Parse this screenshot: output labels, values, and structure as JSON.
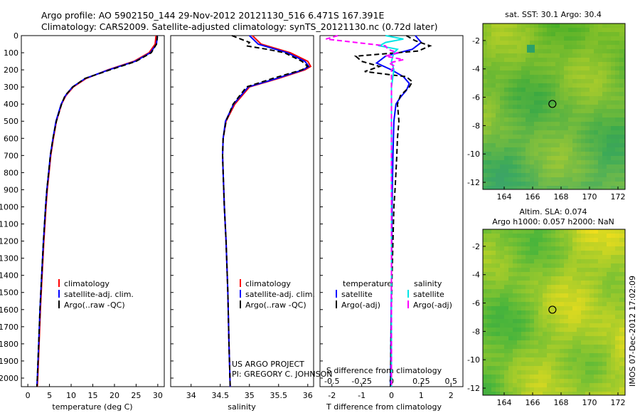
{
  "header": {
    "line1": "Argo profile: AO 5902150_144 29-Nov-2012 20121130_516 6.471S 167.391E",
    "line2": "Climatology: CARS2009. Satellite-adjusted climatology: synTS_20121130.nc (0.72d later)"
  },
  "credit": {
    "line1": "US ARGO PROJECT",
    "line2": "PI: GREGORY C. JOHNSON"
  },
  "stamp": "IMOS 07-Dec-2012 17:02:09",
  "colors": {
    "clim": "#ff0000",
    "sat": "#0000ff",
    "argo": "#000000",
    "cyan": "#00e5e5",
    "magenta": "#ff00ff"
  },
  "chart_data": [
    {
      "type": "line",
      "id": "temperature",
      "xlabel": "temperature (deg C)",
      "ylabel": "",
      "xlim": [
        -1.5,
        31.5
      ],
      "ylim": [
        2050,
        0
      ],
      "xticks": [
        0,
        5,
        10,
        15,
        20,
        25,
        30
      ],
      "xtick_labels": [
        "0",
        "5",
        "10",
        "15",
        "20",
        "25",
        "30"
      ],
      "yticks": [
        0,
        100,
        200,
        300,
        400,
        500,
        600,
        700,
        800,
        900,
        1000,
        1100,
        1200,
        1300,
        1400,
        1500,
        1600,
        1700,
        1800,
        1900,
        2000
      ],
      "ytick_labels": [
        "0",
        "100",
        "200",
        "300",
        "400",
        "500",
        "600",
        "700",
        "800",
        "900",
        "1000",
        "1100",
        "1200",
        "1300",
        "1400",
        "1500",
        "1600",
        "1700",
        "1800",
        "1900",
        "2000"
      ],
      "legend": [
        "climatology",
        "satellite-adj. clim.",
        "Argo(..raw -QC)"
      ],
      "series": [
        {
          "name": "climatology",
          "depth": [
            0,
            50,
            100,
            150,
            200,
            250,
            300,
            350,
            400,
            500,
            600,
            700,
            800,
            900,
            1000,
            1200,
            1400,
            1600,
            1800,
            2000,
            2050
          ],
          "values": [
            29.6,
            29.4,
            28.0,
            24.5,
            18.5,
            13.5,
            10.5,
            8.8,
            7.8,
            6.6,
            5.9,
            5.3,
            4.9,
            4.5,
            4.2,
            3.7,
            3.3,
            2.9,
            2.6,
            2.3,
            2.2
          ]
        },
        {
          "name": "satellite-adj. clim.",
          "depth": [
            0,
            50,
            100,
            150,
            200,
            250,
            300,
            350,
            400,
            500,
            600,
            700,
            800,
            900,
            1000,
            1200,
            1400,
            1600,
            1800,
            2000,
            2050
          ],
          "values": [
            29.9,
            29.7,
            28.3,
            24.8,
            18.7,
            13.3,
            10.3,
            8.7,
            7.7,
            6.5,
            5.8,
            5.2,
            4.8,
            4.4,
            4.1,
            3.6,
            3.2,
            2.8,
            2.5,
            2.2,
            2.1
          ]
        },
        {
          "name": "Argo(..raw -QC)",
          "depth": [
            0,
            10,
            50,
            100,
            150,
            200,
            250,
            300,
            350,
            400,
            500,
            600,
            700,
            800,
            900,
            1000,
            1200,
            1400,
            1600,
            1800,
            2000,
            2050
          ],
          "values": [
            29.8,
            29.9,
            29.7,
            28.5,
            25.0,
            19.0,
            13.2,
            10.4,
            8.6,
            7.8,
            6.6,
            5.8,
            5.2,
            4.8,
            4.4,
            4.1,
            3.6,
            3.2,
            2.8,
            2.5,
            2.2,
            2.1
          ]
        }
      ]
    },
    {
      "type": "line",
      "id": "salinity",
      "xlabel": "salinity",
      "xlim": [
        33.65,
        36.1
      ],
      "ylim": [
        2050,
        0
      ],
      "xticks": [
        34,
        34.5,
        35,
        35.5,
        36
      ],
      "xtick_labels": [
        "34",
        "34.5",
        "35",
        "35.5",
        "36"
      ],
      "legend": [
        "climatology",
        "satellite-adj. clim.",
        "Argo(..raw -QC)"
      ],
      "series": [
        {
          "name": "climatology",
          "depth": [
            0,
            50,
            100,
            150,
            180,
            200,
            250,
            300,
            400,
            500,
            600,
            700,
            800,
            1000,
            1200,
            1500,
            1800,
            2050
          ],
          "values": [
            35.05,
            35.2,
            35.7,
            36.0,
            36.05,
            35.95,
            35.5,
            35.0,
            34.75,
            34.6,
            34.55,
            34.54,
            34.55,
            34.57,
            34.6,
            34.63,
            34.65,
            34.67
          ]
        },
        {
          "name": "satellite-adj. clim.",
          "depth": [
            0,
            50,
            100,
            150,
            180,
            200,
            250,
            300,
            400,
            500,
            600,
            700,
            800,
            1000,
            1200,
            1500,
            1800,
            2050
          ],
          "values": [
            35.0,
            35.15,
            35.65,
            35.95,
            36.02,
            35.92,
            35.47,
            34.98,
            34.73,
            34.59,
            34.55,
            34.54,
            34.55,
            34.57,
            34.6,
            34.63,
            34.65,
            34.67
          ]
        },
        {
          "name": "Argo(..raw -QC)",
          "depth": [
            0,
            20,
            40,
            60,
            80,
            100,
            150,
            180,
            200,
            250,
            300,
            400,
            500,
            600,
            700,
            800,
            1000,
            1200,
            1500,
            1800,
            2050
          ],
          "values": [
            34.7,
            34.85,
            35.0,
            34.95,
            35.3,
            35.6,
            35.9,
            36.0,
            35.9,
            35.4,
            34.95,
            34.72,
            34.6,
            34.55,
            34.54,
            34.55,
            34.57,
            34.6,
            34.63,
            34.65,
            34.67
          ]
        }
      ]
    },
    {
      "type": "line",
      "id": "differences",
      "xlabel": "T difference from climatology",
      "xlabel_top": "S difference from climatology",
      "t_xlim": [
        -2.4,
        2.4
      ],
      "t_xticks": [
        -2,
        -1,
        0,
        1,
        2
      ],
      "t_xtick_labels": [
        "-2",
        "-1",
        "0",
        "1",
        "2"
      ],
      "s_xticks": [
        -0.5,
        -0.25,
        0,
        0.25,
        0.5
      ],
      "s_xtick_labels": [
        "-0.5",
        "-0.25",
        "0",
        "0.25",
        "0.5"
      ],
      "s_xlim": [
        -0.6,
        0.6
      ],
      "ylim": [
        2050,
        0
      ],
      "legend_temperature_title": "temperature",
      "legend_salinity_title": "salinity",
      "legend": [
        "satellite",
        "Argo(-adj)",
        "satellite",
        "Argo(-adj)"
      ],
      "series": [
        {
          "name": "T satellite",
          "axis": "T",
          "depth": [
            0,
            40,
            80,
            120,
            160,
            200,
            240,
            280,
            320,
            360,
            400,
            500,
            700,
            1000,
            1400,
            2050
          ],
          "values": [
            0.8,
            1.0,
            0.7,
            -0.2,
            -0.5,
            0.0,
            0.4,
            0.6,
            0.5,
            0.3,
            0.15,
            0.08,
            0.05,
            0.02,
            0.0,
            -0.03
          ]
        },
        {
          "name": "T Argo(-adj)",
          "axis": "T",
          "depth": [
            0,
            30,
            60,
            90,
            120,
            150,
            180,
            210,
            240,
            270,
            300,
            350,
            400,
            500,
            600,
            700,
            800,
            900,
            1000,
            1200,
            1400,
            1600,
            1800,
            2050
          ],
          "values": [
            0.5,
            0.8,
            1.3,
            0.9,
            -1.2,
            -1.0,
            -0.4,
            -0.9,
            0.5,
            0.7,
            0.6,
            0.3,
            0.2,
            0.25,
            0.2,
            0.18,
            0.15,
            0.12,
            0.08,
            0.05,
            0.02,
            0.0,
            -0.02,
            -0.03
          ]
        },
        {
          "name": "S satellite",
          "axis": "S",
          "depth": [
            0,
            20,
            40,
            60,
            80,
            100,
            150,
            200,
            300,
            400,
            600,
            800,
            1000,
            1500,
            2050
          ],
          "values": [
            -0.05,
            0.1,
            -0.05,
            -0.1,
            0.05,
            0.02,
            0.0,
            0.02,
            0.0,
            0.0,
            0.0,
            0.0,
            0.0,
            0.0,
            0.0
          ]
        },
        {
          "name": "S Argo(-adj)",
          "axis": "S",
          "depth": [
            0,
            20,
            40,
            60,
            80,
            100,
            120,
            140,
            160,
            180,
            200,
            250,
            300,
            400,
            600,
            800,
            1000,
            1500,
            2050
          ],
          "values": [
            -0.45,
            -0.55,
            -0.3,
            -0.05,
            -0.03,
            0.05,
            -0.05,
            0.1,
            -0.02,
            0.03,
            0.0,
            0.0,
            0.0,
            0.0,
            0.0,
            0.0,
            0.0,
            0.0,
            0.0
          ]
        }
      ]
    },
    {
      "type": "heatmap",
      "id": "sst-map",
      "title": "sat. SST: 30.1  Argo: 30.4",
      "xlim": [
        162.5,
        172.5
      ],
      "ylim": [
        -12.5,
        -0.8
      ],
      "xticks": [
        164,
        166,
        168,
        170,
        172
      ],
      "xtick_labels": [
        "164",
        "166",
        "168",
        "170",
        "172"
      ],
      "yticks": [
        -2,
        -4,
        -6,
        -8,
        -10,
        -12
      ],
      "ytick_labels": [
        "-2",
        "-4",
        "-6",
        "-8",
        "-10",
        "-12"
      ],
      "marker": {
        "lon": 167.391,
        "lat": -6.471
      }
    },
    {
      "type": "heatmap",
      "id": "sla-map",
      "title": "Altim. SLA: 0.074",
      "subtitle": "Argo h1000: 0.057 h2000: NaN",
      "xlim": [
        162.5,
        172.5
      ],
      "ylim": [
        -12.5,
        -0.8
      ],
      "xticks": [
        164,
        166,
        168,
        170,
        172
      ],
      "xtick_labels": [
        "164",
        "166",
        "168",
        "170",
        "172"
      ],
      "yticks": [
        -2,
        -4,
        -6,
        -8,
        -10,
        -12
      ],
      "ytick_labels": [
        "-2",
        "-4",
        "-6",
        "-8",
        "-10",
        "-12"
      ],
      "marker": {
        "lon": 167.391,
        "lat": -6.471
      }
    }
  ]
}
